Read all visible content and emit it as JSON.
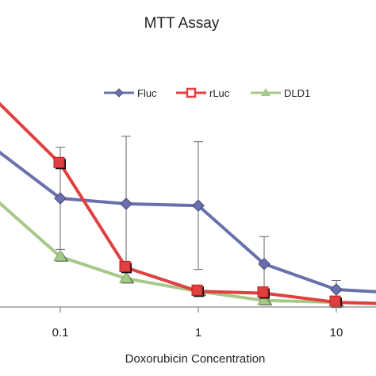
{
  "chart_data": {
    "type": "line",
    "title": "MTT Assay",
    "xlabel": "Doxorubicin Concentration",
    "ylabel": "",
    "x_scale": "log",
    "xlim": [
      0.03,
      30
    ],
    "ylim": [
      0,
      1.2
    ],
    "x_ticks": [
      {
        "value": 0.1,
        "label": "0.1"
      },
      {
        "value": 1,
        "label": "1"
      },
      {
        "value": 10,
        "label": "10"
      }
    ],
    "legend_position": "top-right",
    "grid": false,
    "colors": {
      "axis": "#888888",
      "error_bar": "#666666"
    },
    "series": [
      {
        "name": "Fluc",
        "color": "#6a70ac",
        "marker": "diamond",
        "points": [
          {
            "x": 0.03,
            "y": 0.9
          },
          {
            "x": 0.1,
            "y": 0.6
          },
          {
            "x": 0.3,
            "y": 0.57
          },
          {
            "x": 1,
            "y": 0.56
          },
          {
            "x": 3,
            "y": 0.24
          },
          {
            "x": 10,
            "y": 0.1
          },
          {
            "x": 30,
            "y": 0.08
          }
        ],
        "errors": [
          null,
          0.28,
          0.37,
          0.35,
          0.15,
          0.05,
          null
        ]
      },
      {
        "name": "rLuc",
        "color": "#e04040",
        "marker": "square",
        "points": [
          {
            "x": 0.03,
            "y": 1.18
          },
          {
            "x": 0.1,
            "y": 0.79
          },
          {
            "x": 0.3,
            "y": 0.22
          },
          {
            "x": 1,
            "y": 0.09
          },
          {
            "x": 3,
            "y": 0.08
          },
          {
            "x": 10,
            "y": 0.03
          },
          {
            "x": 30,
            "y": 0.02
          }
        ],
        "errors": [
          null,
          null,
          null,
          null,
          null,
          null,
          null
        ]
      },
      {
        "name": "DLD1",
        "color": "#a6c888",
        "marker": "triangle",
        "points": [
          {
            "x": 0.03,
            "y": 0.63
          },
          {
            "x": 0.1,
            "y": 0.28
          },
          {
            "x": 0.3,
            "y": 0.16
          },
          {
            "x": 1,
            "y": 0.09
          },
          {
            "x": 3,
            "y": 0.04
          },
          {
            "x": 10,
            "y": 0.03
          },
          {
            "x": 30,
            "y": 0.02
          }
        ],
        "errors": [
          null,
          null,
          null,
          null,
          null,
          null,
          null
        ]
      }
    ]
  }
}
